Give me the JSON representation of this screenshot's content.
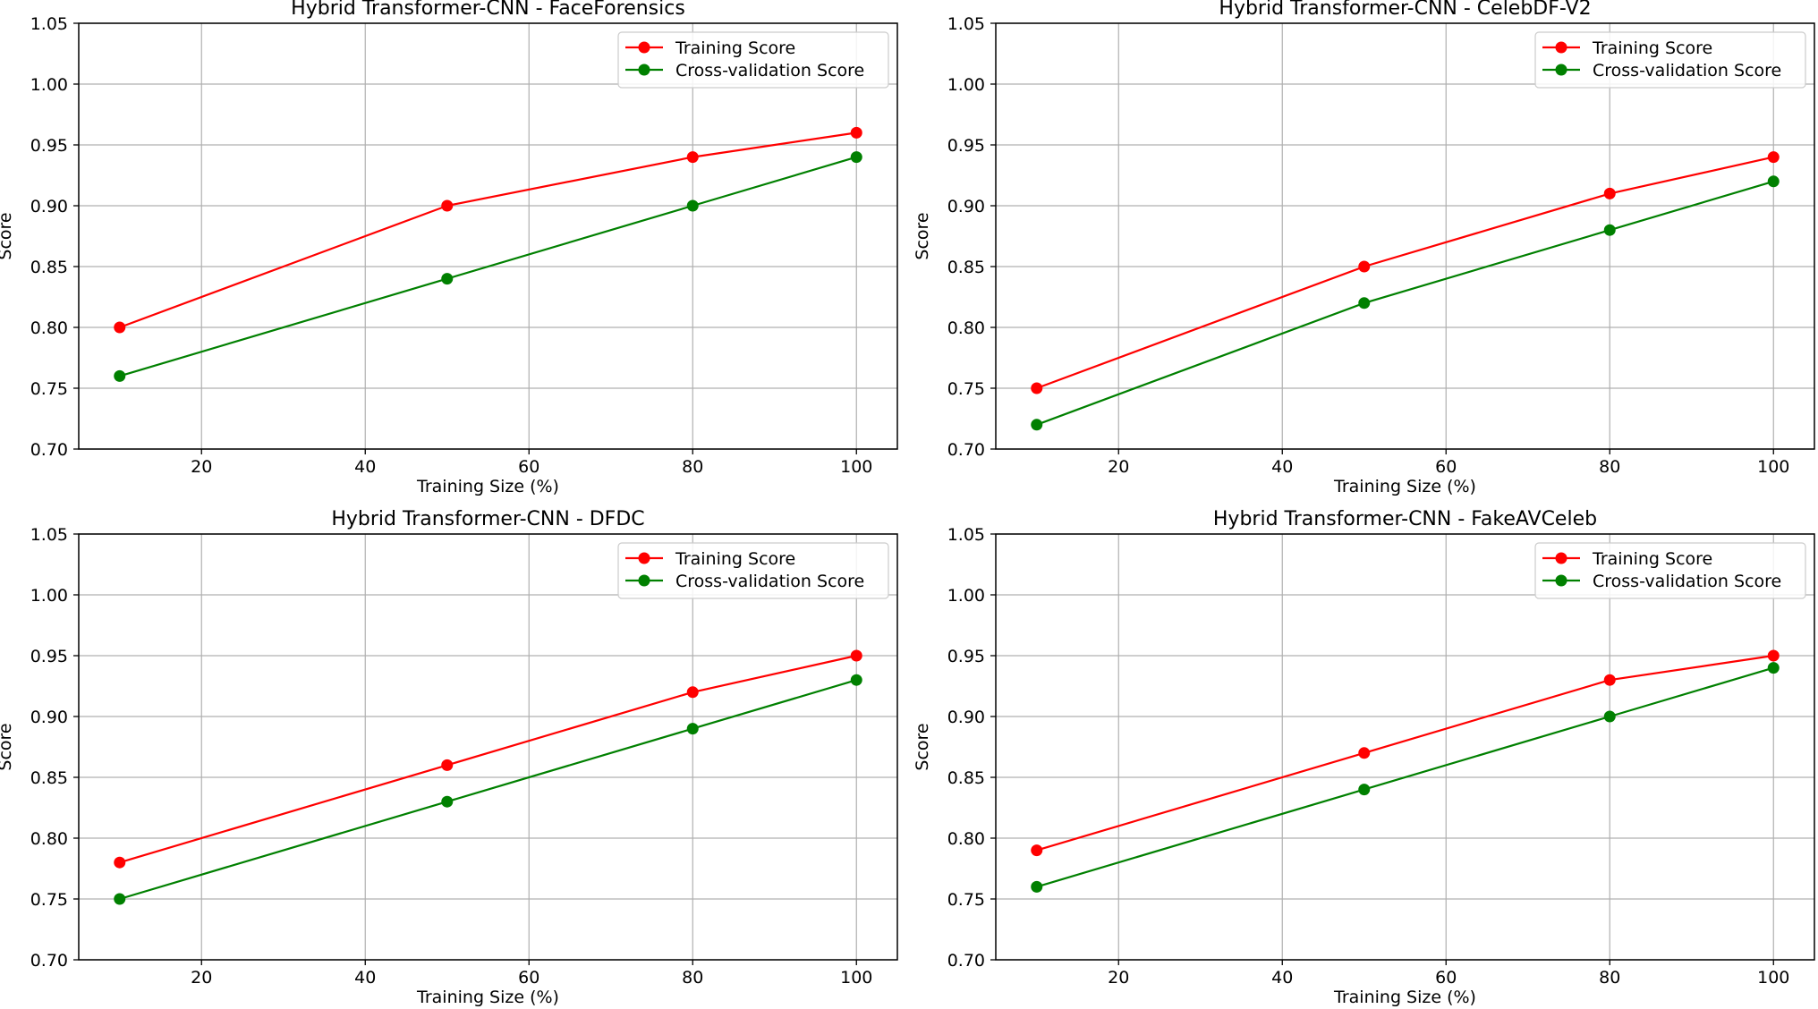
{
  "chart_data": [
    {
      "type": "line",
      "title": "Hybrid Transformer-CNN - FaceForensics",
      "xlabel": "Training Size (%)",
      "ylabel": "Score",
      "x": [
        10,
        50,
        80,
        100
      ],
      "xlim": [
        5,
        105
      ],
      "ylim": [
        0.7,
        1.05
      ],
      "xticks": [
        20,
        40,
        60,
        80,
        100
      ],
      "yticks": [
        "0.70",
        "0.75",
        "0.80",
        "0.85",
        "0.90",
        "0.95",
        "1.00",
        "1.05"
      ],
      "grid": true,
      "legend": "upper-right",
      "series": [
        {
          "name": "Training Score",
          "color": "#ff0000",
          "values": [
            0.8,
            0.9,
            0.94,
            0.96
          ]
        },
        {
          "name": "Cross-validation Score",
          "color": "#008000",
          "values": [
            0.76,
            0.84,
            0.9,
            0.94
          ]
        }
      ]
    },
    {
      "type": "line",
      "title": "Hybrid Transformer-CNN - CelebDF-V2",
      "xlabel": "Training Size (%)",
      "ylabel": "Score",
      "x": [
        10,
        50,
        80,
        100
      ],
      "xlim": [
        5,
        105
      ],
      "ylim": [
        0.7,
        1.05
      ],
      "xticks": [
        20,
        40,
        60,
        80,
        100
      ],
      "yticks": [
        "0.70",
        "0.75",
        "0.80",
        "0.85",
        "0.90",
        "0.95",
        "1.00",
        "1.05"
      ],
      "grid": true,
      "legend": "upper-right",
      "series": [
        {
          "name": "Training Score",
          "color": "#ff0000",
          "values": [
            0.75,
            0.85,
            0.91,
            0.94
          ]
        },
        {
          "name": "Cross-validation Score",
          "color": "#008000",
          "values": [
            0.72,
            0.82,
            0.88,
            0.92
          ]
        }
      ]
    },
    {
      "type": "line",
      "title": "Hybrid Transformer-CNN - DFDC",
      "xlabel": "Training Size (%)",
      "ylabel": "Score",
      "x": [
        10,
        50,
        80,
        100
      ],
      "xlim": [
        5,
        105
      ],
      "ylim": [
        0.7,
        1.05
      ],
      "xticks": [
        20,
        40,
        60,
        80,
        100
      ],
      "yticks": [
        "0.70",
        "0.75",
        "0.80",
        "0.85",
        "0.90",
        "0.95",
        "1.00",
        "1.05"
      ],
      "grid": true,
      "legend": "upper-right",
      "series": [
        {
          "name": "Training Score",
          "color": "#ff0000",
          "values": [
            0.78,
            0.86,
            0.92,
            0.95
          ]
        },
        {
          "name": "Cross-validation Score",
          "color": "#008000",
          "values": [
            0.75,
            0.83,
            0.89,
            0.93
          ]
        }
      ]
    },
    {
      "type": "line",
      "title": "Hybrid Transformer-CNN - FakeAVCeleb",
      "xlabel": "Training Size (%)",
      "ylabel": "Score",
      "x": [
        10,
        50,
        80,
        100
      ],
      "xlim": [
        5,
        105
      ],
      "ylim": [
        0.7,
        1.05
      ],
      "xticks": [
        20,
        40,
        60,
        80,
        100
      ],
      "yticks": [
        "0.70",
        "0.75",
        "0.80",
        "0.85",
        "0.90",
        "0.95",
        "1.00",
        "1.05"
      ],
      "grid": true,
      "legend": "upper-right",
      "series": [
        {
          "name": "Training Score",
          "color": "#ff0000",
          "values": [
            0.79,
            0.87,
            0.93,
            0.95
          ]
        },
        {
          "name": "Cross-validation Score",
          "color": "#008000",
          "values": [
            0.76,
            0.84,
            0.9,
            0.94
          ]
        }
      ]
    }
  ]
}
